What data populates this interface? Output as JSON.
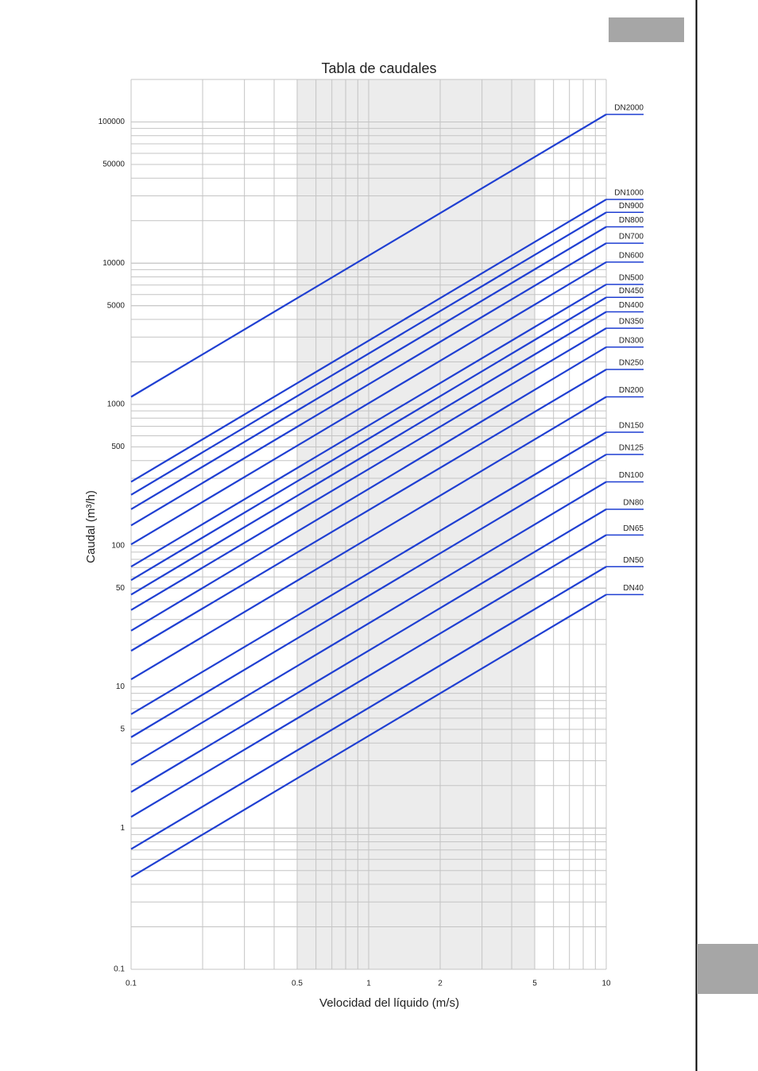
{
  "chart_data": {
    "type": "line",
    "title": "Tabla de caudales",
    "xlabel": "Velocidad del líquido (m/s)",
    "ylabel": "Caudal (m³/h)",
    "xscale": "log",
    "yscale": "log",
    "grid": true,
    "shaded_xrange": [
      0.5,
      5
    ],
    "x": [
      0.1,
      10
    ],
    "xlim": [
      0.1,
      10
    ],
    "xticks": [
      0.1,
      0.5,
      1,
      2,
      5,
      10
    ],
    "ylim": [
      0.1,
      200000
    ],
    "yticks": [
      0.1,
      1,
      5,
      10,
      50,
      100,
      500,
      1000,
      5000,
      10000,
      50000,
      100000
    ],
    "series": [
      {
        "name": "DN2000",
        "color": "#1f3fd2",
        "values": [
          1131,
          113097
        ]
      },
      {
        "name": "DN1000",
        "color": "#1f3fd2",
        "values": [
          283,
          28274
        ]
      },
      {
        "name": "DN900",
        "color": "#1f3fd2",
        "values": [
          229,
          22902
        ]
      },
      {
        "name": "DN800",
        "color": "#1f3fd2",
        "values": [
          181,
          18096
        ]
      },
      {
        "name": "DN700",
        "color": "#1f3fd2",
        "values": [
          139,
          13854
        ]
      },
      {
        "name": "DN600",
        "color": "#1f3fd2",
        "values": [
          102,
          10179
        ]
      },
      {
        "name": "DN500",
        "color": "#1f3fd2",
        "values": [
          71,
          7069
        ]
      },
      {
        "name": "DN450",
        "color": "#1f3fd2",
        "values": [
          57,
          5726
        ]
      },
      {
        "name": "DN400",
        "color": "#1f3fd2",
        "values": [
          45,
          4524
        ]
      },
      {
        "name": "DN350",
        "color": "#1f3fd2",
        "values": [
          35,
          3464
        ]
      },
      {
        "name": "DN300",
        "color": "#1f3fd2",
        "values": [
          25,
          2545
        ]
      },
      {
        "name": "DN250",
        "color": "#1f3fd2",
        "values": [
          18,
          1767
        ]
      },
      {
        "name": "DN200",
        "color": "#1f3fd2",
        "values": [
          11.3,
          1131
        ]
      },
      {
        "name": "DN150",
        "color": "#1f3fd2",
        "values": [
          6.4,
          636
        ]
      },
      {
        "name": "DN125",
        "color": "#1f3fd2",
        "values": [
          4.4,
          442
        ]
      },
      {
        "name": "DN100",
        "color": "#1f3fd2",
        "values": [
          2.8,
          283
        ]
      },
      {
        "name": "DN80",
        "color": "#1f3fd2",
        "values": [
          1.8,
          181
        ]
      },
      {
        "name": "DN65",
        "color": "#1f3fd2",
        "values": [
          1.2,
          119
        ]
      },
      {
        "name": "DN50",
        "color": "#1f3fd2",
        "values": [
          0.71,
          71
        ]
      },
      {
        "name": "DN40",
        "color": "#1f3fd2",
        "values": [
          0.45,
          45
        ]
      }
    ]
  }
}
